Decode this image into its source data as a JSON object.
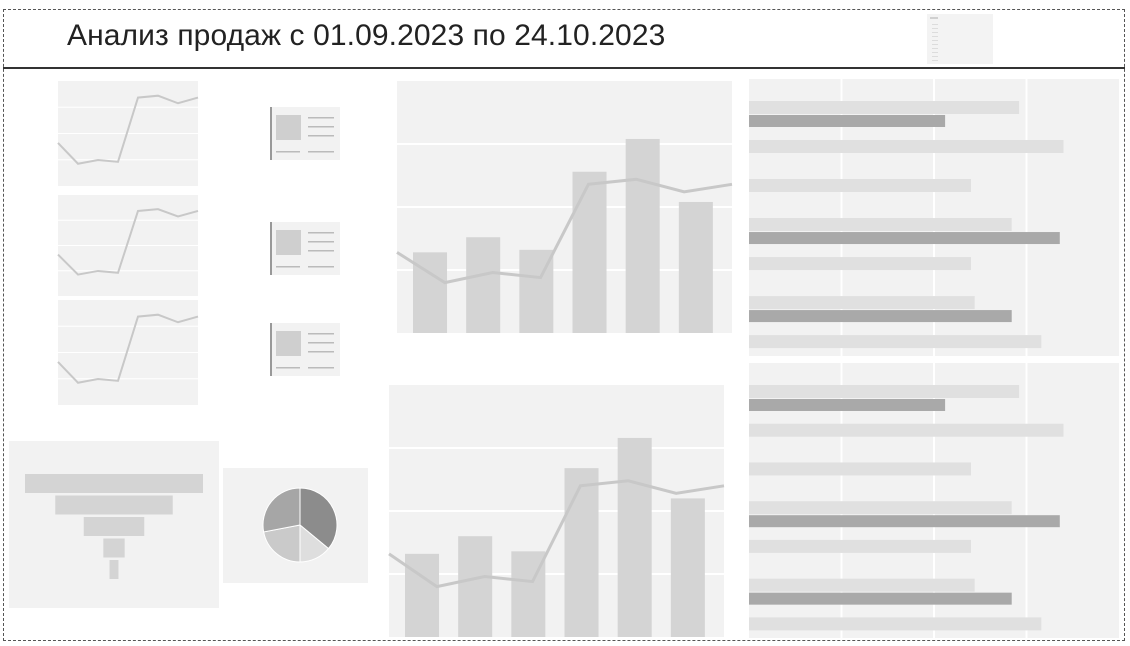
{
  "report": {
    "title": "Анализ продаж с 01.09.2023 по 24.10.2023"
  },
  "placeholders": {
    "sparklines": [
      {
        "values": [
          40,
          18,
          22,
          20,
          88,
          90,
          82,
          88
        ]
      },
      {
        "values": [
          40,
          18,
          22,
          20,
          88,
          90,
          82,
          88
        ]
      },
      {
        "values": [
          40,
          18,
          22,
          20,
          88,
          90,
          82,
          88
        ]
      }
    ],
    "combo_charts": [
      {
        "bars": [
          32,
          38,
          33,
          64,
          77,
          52
        ],
        "line": [
          32,
          20,
          24,
          22,
          59,
          61,
          56,
          59
        ]
      },
      {
        "bars": [
          33,
          40,
          34,
          67,
          79,
          55
        ],
        "line": [
          33,
          20,
          24,
          22,
          60,
          62,
          57,
          60
        ]
      }
    ],
    "bar_lists": [
      {
        "light": [
          0.73,
          0.85,
          0.6,
          0.71,
          0.6,
          0.61,
          0.79
        ],
        "dark": [
          0.53,
          0.84,
          0.71
        ]
      },
      {
        "light": [
          0.73,
          0.85,
          0.6,
          0.71,
          0.6,
          0.61,
          0.79
        ],
        "dark": [
          0.53,
          0.84,
          0.71
        ]
      }
    ],
    "funnel": [
      1.0,
      0.66,
      0.34,
      0.12,
      0.05
    ],
    "pie": [
      0.36,
      0.14,
      0.22,
      0.28
    ],
    "colors": {
      "tile": "#f2f2f2",
      "bar_light": "#d4d4d4",
      "bar_dark": "#a9a9a9",
      "line": "#c8c8c8",
      "grid": "#ffffff"
    }
  }
}
